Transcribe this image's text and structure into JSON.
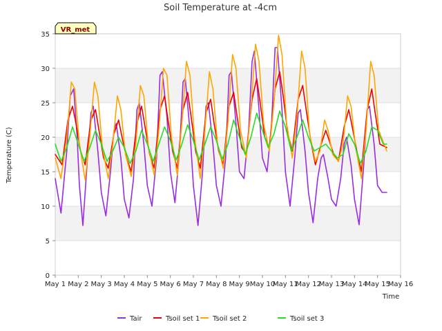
{
  "chart_data": {
    "type": "line",
    "title": "Soil Temperature at -4cm",
    "xlabel": "Time",
    "ylabel": "Temperature (C)",
    "site_label": "VR_met",
    "xlim": [
      1,
      16
    ],
    "ylim": [
      0,
      35
    ],
    "x_ticks": [
      1,
      2,
      3,
      4,
      5,
      6,
      7,
      8,
      9,
      10,
      11,
      12,
      13,
      14,
      15,
      16
    ],
    "x_tick_labels": [
      "May 1",
      "May 2",
      "May 3",
      "May 4",
      "May 5",
      "May 6",
      "May 7",
      "May 8",
      "May 9",
      "May 10",
      "May 11",
      "May 12",
      "May 13",
      "May 14",
      "May 15",
      "May 16"
    ],
    "y_ticks": [
      0,
      5,
      10,
      15,
      20,
      25,
      30,
      35
    ],
    "y_tick_labels": [
      "0",
      "5",
      "10",
      "15",
      "20",
      "25",
      "30",
      "35"
    ],
    "grid": true,
    "banded_background": true,
    "legend_position": "bottom-center",
    "series": [
      {
        "name": "Tair",
        "color": "#9a2be2",
        "x": [
          1.0,
          1.25,
          1.5,
          1.65,
          1.8,
          1.95,
          2.05,
          2.2,
          2.4,
          2.55,
          2.65,
          2.85,
          3.0,
          3.2,
          3.4,
          3.55,
          3.65,
          3.85,
          4.0,
          4.2,
          4.4,
          4.55,
          4.65,
          4.85,
          5.0,
          5.2,
          5.4,
          5.55,
          5.65,
          5.85,
          6.0,
          6.2,
          6.4,
          6.55,
          6.65,
          6.85,
          7.0,
          7.2,
          7.4,
          7.55,
          7.65,
          7.85,
          8.0,
          8.2,
          8.4,
          8.55,
          8.65,
          8.85,
          9.0,
          9.2,
          9.4,
          9.55,
          9.65,
          9.85,
          10.0,
          10.2,
          10.4,
          10.55,
          10.65,
          10.85,
          11.0,
          11.2,
          11.4,
          11.55,
          11.65,
          11.85,
          12.0,
          12.2,
          12.4,
          12.55,
          12.65,
          12.85,
          13.0,
          13.2,
          13.4,
          13.55,
          13.65,
          13.85,
          14.0,
          14.2,
          14.4,
          14.55,
          14.65,
          14.85,
          15.0,
          15.2,
          15.4
        ],
        "y": [
          14.0,
          9.0,
          18.0,
          26.0,
          27.0,
          20.0,
          13.0,
          7.2,
          17.0,
          23.5,
          24.5,
          18.0,
          12.0,
          8.6,
          15.0,
          21.0,
          22.0,
          17.0,
          11.0,
          8.3,
          14.0,
          24.0,
          25.0,
          19.0,
          13.0,
          10.0,
          17.0,
          29.0,
          29.5,
          23.0,
          15.0,
          10.5,
          18.0,
          28.0,
          28.5,
          21.0,
          13.0,
          7.2,
          15.0,
          24.5,
          25.0,
          19.0,
          13.0,
          10.0,
          17.0,
          29.0,
          29.5,
          22.0,
          15.0,
          14.0,
          21.0,
          31.0,
          32.5,
          24.0,
          17.0,
          15.0,
          22.0,
          33.0,
          33.0,
          24.0,
          15.0,
          10.0,
          17.0,
          23.5,
          24.0,
          18.0,
          12.0,
          7.6,
          14.0,
          17.0,
          17.5,
          14.0,
          11.0,
          10.0,
          14.0,
          19.0,
          20.0,
          16.0,
          11.0,
          7.3,
          16.0,
          24.0,
          24.5,
          19.0,
          13.0,
          12.0,
          12.0
        ]
      },
      {
        "name": "Tsoil set 1",
        "color": "#ee0000",
        "x": [
          1.0,
          1.3,
          1.55,
          1.75,
          1.9,
          2.1,
          2.3,
          2.55,
          2.75,
          2.9,
          3.1,
          3.3,
          3.55,
          3.75,
          3.9,
          4.1,
          4.3,
          4.55,
          4.75,
          4.9,
          5.1,
          5.3,
          5.55,
          5.75,
          5.9,
          6.1,
          6.3,
          6.55,
          6.75,
          6.9,
          7.1,
          7.3,
          7.55,
          7.75,
          7.9,
          8.1,
          8.3,
          8.55,
          8.75,
          8.9,
          9.1,
          9.3,
          9.55,
          9.75,
          9.9,
          10.1,
          10.3,
          10.55,
          10.75,
          10.9,
          11.1,
          11.3,
          11.55,
          11.75,
          11.9,
          12.1,
          12.3,
          12.55,
          12.75,
          12.9,
          13.1,
          13.3,
          13.55,
          13.75,
          13.9,
          14.1,
          14.3,
          14.55,
          14.75,
          14.9,
          15.1,
          15.4
        ],
        "y": [
          17.5,
          16.0,
          22.5,
          24.5,
          22.0,
          18.0,
          16.0,
          22.5,
          24.0,
          21.0,
          17.0,
          15.5,
          20.5,
          22.5,
          20.0,
          17.0,
          15.0,
          22.0,
          24.5,
          21.5,
          17.5,
          15.5,
          24.0,
          26.0,
          22.5,
          18.0,
          15.5,
          24.0,
          26.5,
          23.0,
          18.0,
          15.5,
          23.5,
          25.5,
          22.0,
          18.0,
          16.0,
          24.5,
          26.5,
          23.0,
          18.5,
          17.5,
          25.5,
          28.5,
          25.0,
          20.0,
          18.5,
          27.0,
          29.5,
          26.0,
          20.5,
          18.0,
          25.5,
          27.5,
          24.0,
          19.5,
          16.0,
          19.0,
          21.0,
          19.5,
          17.5,
          16.5,
          21.5,
          24.0,
          21.5,
          18.0,
          15.0,
          24.0,
          27.0,
          23.5,
          19.0,
          18.5
        ]
      },
      {
        "name": "Tsoil set 2",
        "color": "#ffa500",
        "x": [
          1.0,
          1.25,
          1.5,
          1.7,
          1.85,
          2.05,
          2.3,
          2.5,
          2.7,
          2.85,
          3.05,
          3.3,
          3.5,
          3.7,
          3.85,
          4.05,
          4.3,
          4.5,
          4.7,
          4.85,
          5.05,
          5.3,
          5.5,
          5.7,
          5.85,
          6.05,
          6.3,
          6.5,
          6.7,
          6.85,
          7.05,
          7.3,
          7.5,
          7.7,
          7.85,
          8.05,
          8.3,
          8.5,
          8.7,
          8.85,
          9.05,
          9.3,
          9.5,
          9.7,
          9.85,
          10.05,
          10.3,
          10.5,
          10.7,
          10.85,
          11.05,
          11.3,
          11.5,
          11.7,
          11.85,
          12.05,
          12.3,
          12.5,
          12.7,
          12.85,
          13.05,
          13.3,
          13.5,
          13.7,
          13.85,
          14.05,
          14.3,
          14.5,
          14.7,
          14.85,
          15.05,
          15.4
        ],
        "y": [
          17.0,
          14.0,
          20.0,
          28.0,
          27.0,
          19.0,
          13.8,
          20.0,
          28.0,
          26.0,
          18.5,
          14.0,
          19.0,
          26.0,
          24.0,
          17.5,
          14.3,
          19.0,
          27.5,
          26.0,
          18.5,
          14.5,
          21.0,
          30.0,
          29.0,
          20.0,
          14.5,
          22.0,
          31.0,
          29.0,
          20.0,
          14.0,
          21.0,
          29.5,
          27.0,
          19.0,
          15.5,
          22.0,
          32.0,
          30.0,
          21.0,
          17.0,
          24.0,
          33.5,
          31.0,
          22.0,
          18.0,
          25.0,
          34.8,
          32.0,
          22.0,
          17.0,
          23.0,
          32.5,
          30.0,
          20.5,
          16.5,
          18.0,
          22.5,
          21.0,
          17.5,
          16.5,
          19.0,
          26.0,
          24.5,
          18.5,
          14.0,
          21.0,
          31.0,
          29.0,
          21.0,
          18.0
        ]
      },
      {
        "name": "Tsoil set 3",
        "color": "#22dd22",
        "x": [
          1.0,
          1.25,
          1.5,
          1.75,
          2.0,
          2.25,
          2.5,
          2.75,
          3.0,
          3.25,
          3.5,
          3.75,
          4.0,
          4.25,
          4.5,
          4.75,
          5.0,
          5.25,
          5.5,
          5.75,
          6.0,
          6.25,
          6.5,
          6.75,
          7.0,
          7.25,
          7.5,
          7.75,
          8.0,
          8.25,
          8.5,
          8.75,
          9.0,
          9.25,
          9.5,
          9.75,
          10.0,
          10.25,
          10.5,
          10.75,
          11.0,
          11.25,
          11.5,
          11.75,
          12.0,
          12.25,
          12.5,
          12.75,
          13.0,
          13.25,
          13.5,
          13.75,
          14.0,
          14.25,
          14.5,
          14.75,
          15.0,
          15.25,
          15.4
        ],
        "y": [
          19.0,
          16.5,
          18.5,
          21.5,
          19.0,
          16.5,
          18.5,
          21.0,
          19.0,
          16.5,
          18.0,
          20.0,
          18.5,
          16.2,
          18.0,
          21.0,
          19.0,
          16.5,
          19.0,
          21.5,
          19.5,
          16.7,
          19.0,
          21.8,
          19.5,
          16.7,
          19.0,
          21.5,
          19.5,
          16.8,
          19.0,
          22.5,
          20.0,
          17.5,
          20.0,
          23.5,
          21.0,
          18.5,
          20.5,
          23.8,
          21.5,
          18.0,
          20.0,
          22.5,
          20.0,
          18.0,
          18.5,
          19.0,
          18.0,
          17.0,
          17.5,
          20.5,
          19.0,
          16.2,
          18.0,
          21.5,
          21.0,
          19.0,
          19.0
        ]
      }
    ]
  }
}
